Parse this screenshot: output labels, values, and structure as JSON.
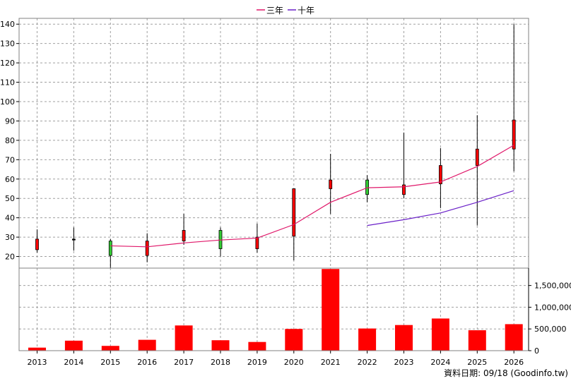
{
  "chart_data": {
    "type": "candlestick",
    "years": [
      "2013",
      "2014",
      "2015",
      "2016",
      "2017",
      "2018",
      "2019",
      "2020",
      "2021",
      "2022",
      "2023",
      "2024",
      "2025",
      "2026"
    ],
    "price_axis": {
      "ylim": [
        14,
        143
      ],
      "ticks": [
        20,
        30,
        40,
        50,
        60,
        70,
        80,
        90,
        100,
        110,
        120,
        130,
        140
      ]
    },
    "volume_axis": {
      "ylim": [
        0,
        1900000
      ],
      "ticks": [
        0,
        500000,
        1000000,
        1500000
      ],
      "tick_labels": [
        "0",
        "500,000",
        "1,000,000",
        "1,500,000"
      ]
    },
    "candles": [
      {
        "year": "2013",
        "open": 23.5,
        "close": 29,
        "high": 34,
        "low": 22,
        "color": "red"
      },
      {
        "year": "2014",
        "open": 28.5,
        "close": 29,
        "high": 35,
        "low": 23,
        "color": "black"
      },
      {
        "year": "2015",
        "open": 28,
        "close": 20.5,
        "high": 29,
        "low": 14,
        "color": "green"
      },
      {
        "year": "2016",
        "open": 20.5,
        "close": 28,
        "high": 32,
        "low": 17,
        "color": "red"
      },
      {
        "year": "2017",
        "open": 28,
        "close": 33.5,
        "high": 42,
        "low": 26,
        "color": "red"
      },
      {
        "year": "2018",
        "open": 33.5,
        "close": 24,
        "high": 35,
        "low": 20,
        "color": "green"
      },
      {
        "year": "2019",
        "open": 24,
        "close": 30,
        "high": 37,
        "low": 22,
        "color": "red"
      },
      {
        "year": "2020",
        "open": 30.5,
        "close": 55,
        "high": 55,
        "low": 18,
        "color": "red"
      },
      {
        "year": "2021",
        "open": 55,
        "close": 59.5,
        "high": 73,
        "low": 42,
        "color": "red"
      },
      {
        "year": "2022",
        "open": 59.5,
        "close": 52,
        "high": 62,
        "low": 48,
        "color": "green"
      },
      {
        "year": "2023",
        "open": 52,
        "close": 57,
        "high": 84,
        "low": 50,
        "color": "red"
      },
      {
        "year": "2024",
        "open": 57.5,
        "close": 67,
        "high": 76,
        "low": 45,
        "color": "red"
      },
      {
        "year": "2025",
        "open": 67,
        "close": 75.5,
        "high": 93,
        "low": 36,
        "color": "red"
      },
      {
        "year": "2026",
        "open": 75.5,
        "close": 90.5,
        "high": 140,
        "low": 64,
        "color": "red"
      }
    ],
    "series": [
      {
        "name": "三年",
        "color": "#e0186a",
        "values": [
          null,
          null,
          25.5,
          25,
          27,
          28.5,
          29.5,
          36.5,
          48,
          55.5,
          56,
          58.5,
          66.5,
          77.5
        ]
      },
      {
        "name": "十年",
        "color": "#6a20c8",
        "values": [
          null,
          null,
          null,
          null,
          null,
          null,
          null,
          null,
          null,
          36,
          39,
          42.5,
          48,
          54
        ]
      }
    ],
    "volume": [
      70000,
      230000,
      110000,
      250000,
      580000,
      240000,
      200000,
      500000,
      1880000,
      510000,
      590000,
      740000,
      470000,
      610000
    ],
    "grid": true,
    "legend_position": "top-center"
  },
  "footer": {
    "source": "資料日期: 09/18  (Goodinfo.tw)"
  }
}
